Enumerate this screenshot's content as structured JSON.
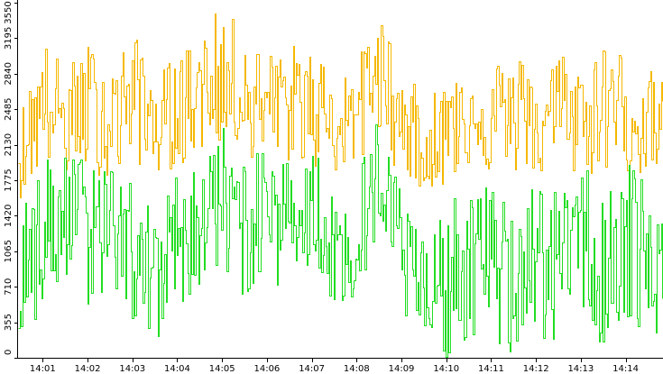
{
  "chart_data": {
    "type": "line",
    "title": "",
    "xlabel": "",
    "ylabel": "",
    "grid": false,
    "legend": "none",
    "ylim": [
      0,
      3550
    ],
    "y_ticks": [
      "0",
      "355",
      "710",
      "1065",
      "1420",
      "1775",
      "2130",
      "2485",
      "2840",
      "3195",
      "3550"
    ],
    "x_ticks": [
      "14:01",
      "14:02",
      "14:03",
      "14:04",
      "14:05",
      "14:06",
      "14:07",
      "14:08",
      "14:09",
      "14:10",
      "14:11",
      "14:12",
      "14:13",
      "14:14"
    ],
    "x_range": [
      "14:00:27",
      "14:14:50"
    ],
    "series": [
      {
        "color": "#f5b800",
        "x": [
          "14:00:30",
          "14:01:00",
          "14:01:30",
          "14:02:00",
          "14:02:30",
          "14:03:00",
          "14:03:30",
          "14:04:00",
          "14:04:30",
          "14:05:00",
          "14:05:30",
          "14:06:00",
          "14:06:30",
          "14:07:00",
          "14:07:30",
          "14:08:00",
          "14:08:30",
          "14:09:00",
          "14:09:30",
          "14:10:00",
          "14:10:30",
          "14:11:00",
          "14:11:30",
          "14:12:00",
          "14:12:30",
          "14:13:00",
          "14:13:30",
          "14:14:00",
          "14:14:30",
          "14:14:50"
        ],
        "values": [
          2100,
          2600,
          2350,
          2550,
          2400,
          2750,
          2300,
          2450,
          2700,
          2800,
          2650,
          2500,
          2600,
          2550,
          2350,
          2450,
          3000,
          2350,
          2000,
          2250,
          2550,
          2400,
          2450,
          2350,
          2500,
          2300,
          2650,
          2450,
          2350,
          2250
        ],
        "min": [
          1600,
          1950,
          1800,
          1900,
          1750,
          1950,
          1850,
          1900,
          2050,
          2150,
          2050,
          1850,
          1950,
          1900,
          1850,
          1900,
          2200,
          1750,
          1700,
          1700,
          1950,
          1800,
          1850,
          1800,
          1850,
          1800,
          1850,
          1850,
          1800,
          1700
        ],
        "max": [
          2500,
          3200,
          2900,
          3150,
          2950,
          3250,
          2850,
          3050,
          3250,
          3550,
          3200,
          3050,
          3150,
          3100,
          2900,
          3000,
          3450,
          2850,
          2650,
          2800,
          3200,
          3000,
          3050,
          2900,
          3100,
          2950,
          3200,
          3050,
          2900,
          2750
        ]
      },
      {
        "color": "#22dd22",
        "x": [
          "14:00:30",
          "14:01:00",
          "14:01:30",
          "14:02:00",
          "14:02:30",
          "14:03:00",
          "14:03:30",
          "14:04:00",
          "14:04:30",
          "14:05:00",
          "14:05:30",
          "14:06:00",
          "14:06:30",
          "14:07:00",
          "14:07:30",
          "14:08:00",
          "14:08:30",
          "14:09:00",
          "14:09:30",
          "14:10:00",
          "14:10:30",
          "14:11:00",
          "14:11:30",
          "14:12:00",
          "14:12:30",
          "14:13:00",
          "14:13:30",
          "14:14:00",
          "14:14:30",
          "14:14:50"
        ],
        "values": [
          900,
          1300,
          1500,
          1350,
          1400,
          1100,
          800,
          1300,
          1400,
          1550,
          1350,
          1500,
          1400,
          1600,
          1000,
          1300,
          1700,
          1100,
          500,
          700,
          1100,
          900,
          900,
          1100,
          1000,
          1300,
          1000,
          1250,
          1050,
          800
        ],
        "min": [
          0,
          400,
          700,
          500,
          700,
          300,
          0,
          500,
          700,
          800,
          600,
          700,
          700,
          900,
          400,
          600,
          1000,
          400,
          0,
          0,
          200,
          0,
          0,
          200,
          0,
          500,
          0,
          300,
          0,
          0
        ],
        "max": [
          1500,
          2000,
          2100,
          2000,
          2050,
          1800,
          1400,
          1900,
          2050,
          2350,
          2000,
          2100,
          2000,
          2200,
          1600,
          1900,
          2500,
          1650,
          1200,
          1500,
          1800,
          1700,
          1600,
          1750,
          1650,
          1950,
          1800,
          2050,
          1800,
          1400
        ]
      }
    ]
  }
}
